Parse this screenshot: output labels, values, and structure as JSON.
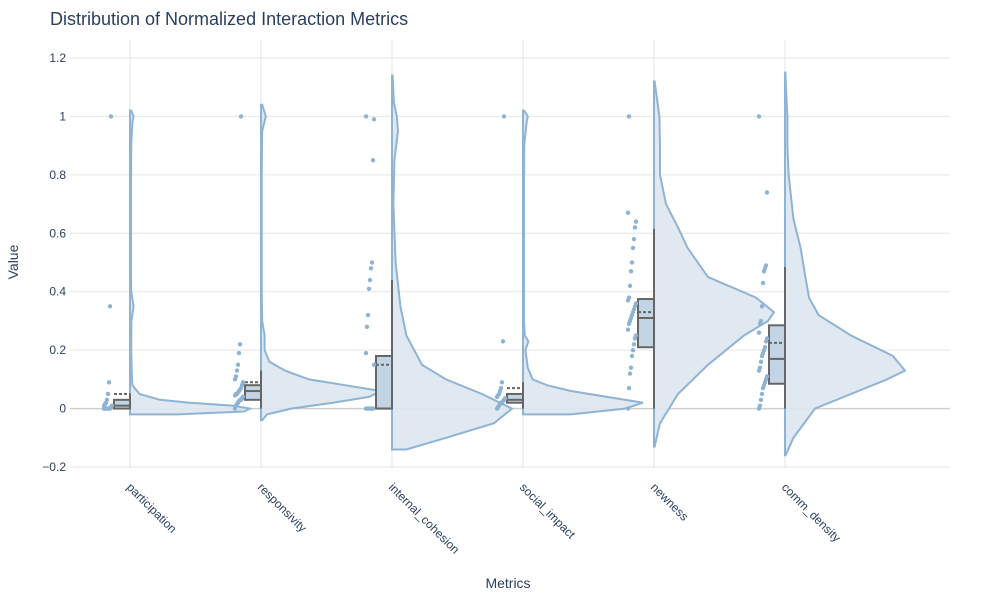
{
  "chart_data": {
    "type": "violin",
    "title": "Distribution of Normalized Interaction Metrics",
    "xlabel": "Metrics",
    "ylabel": "Value",
    "ylim": [
      -0.2,
      1.2
    ],
    "yticks": [
      -0.2,
      0,
      0.2,
      0.4,
      0.6,
      0.8,
      1,
      1.2
    ],
    "ytick_labels": [
      "−0.2",
      "0",
      "0.2",
      "0.4",
      "0.6",
      "0.8",
      "1",
      "1.2"
    ],
    "grid": true,
    "legend": "none",
    "colors": {
      "violin_line": "#8fb3d3",
      "violin_fill": "#dde7f0",
      "points": "#8fb3d3",
      "box_line": "#666666",
      "box_fill": "#c3d5e5",
      "grid": "#e5e5e5",
      "zeroline": "#d0d0d0",
      "text": "#2a3f5f"
    },
    "categories": [
      "participation",
      "responsivity",
      "internal_cohesion",
      "social_impact",
      "newness",
      "comm_density"
    ],
    "metrics": [
      {
        "name": "participation",
        "box": {
          "min": 0,
          "q1": 0.0,
          "median": 0.01,
          "q3": 0.03,
          "upper_fence": 0.05,
          "mean": 0.05
        },
        "density": [
          [
            -0.02,
            0.4
          ],
          [
            -0.01,
            0.95
          ],
          [
            0,
            1
          ],
          [
            0.01,
            0.85
          ],
          [
            0.02,
            0.5
          ],
          [
            0.03,
            0.25
          ],
          [
            0.05,
            0.08
          ],
          [
            0.08,
            0.02
          ],
          [
            0.12,
            0.015
          ],
          [
            0.2,
            0.01
          ],
          [
            0.3,
            0.012
          ],
          [
            0.35,
            0.03
          ],
          [
            0.4,
            0.01
          ],
          [
            0.5,
            0.008
          ],
          [
            0.7,
            0.008
          ],
          [
            0.9,
            0.01
          ],
          [
            0.98,
            0.02
          ],
          [
            1.0,
            0.03
          ],
          [
            1.02,
            0.01
          ]
        ],
        "points": [
          0,
          0,
          0,
          0,
          0,
          0,
          0,
          0.005,
          0.01,
          0.01,
          0.015,
          0.02,
          0.03,
          0.05,
          0.09,
          0.35,
          1.0
        ]
      },
      {
        "name": "responsivity",
        "box": {
          "min": 0,
          "q1": 0.03,
          "median": 0.06,
          "q3": 0.08,
          "upper_fence": 0.13,
          "mean": 0.09
        },
        "density": [
          [
            -0.04,
            0.01
          ],
          [
            -0.02,
            0.05
          ],
          [
            0,
            0.25
          ],
          [
            0.02,
            0.6
          ],
          [
            0.04,
            0.9
          ],
          [
            0.06,
            1
          ],
          [
            0.08,
            0.7
          ],
          [
            0.1,
            0.4
          ],
          [
            0.13,
            0.2
          ],
          [
            0.16,
            0.07
          ],
          [
            0.2,
            0.03
          ],
          [
            0.25,
            0.03
          ],
          [
            0.3,
            0.01
          ],
          [
            0.4,
            0.006
          ],
          [
            0.6,
            0.006
          ],
          [
            0.8,
            0.006
          ],
          [
            0.95,
            0.01
          ],
          [
            1.0,
            0.04
          ],
          [
            1.04,
            0.01
          ]
        ],
        "points": [
          0,
          0.01,
          0.015,
          0.02,
          0.025,
          0.03,
          0.03,
          0.035,
          0.04,
          0.045,
          0.05,
          0.05,
          0.055,
          0.06,
          0.065,
          0.07,
          0.08,
          0.09,
          0.1,
          0.11,
          0.13,
          0.15,
          0.19,
          0.22,
          1.0
        ]
      },
      {
        "name": "internal_cohesion",
        "box": {
          "min": 0,
          "q1": 0,
          "median": 0,
          "q3": 0.18,
          "upper_fence": 0.44,
          "mean": 0.15
        },
        "density": [
          [
            -0.14,
            0.12
          ],
          [
            -0.1,
            0.45
          ],
          [
            -0.05,
            0.85
          ],
          [
            0,
            1
          ],
          [
            0.05,
            0.75
          ],
          [
            0.1,
            0.45
          ],
          [
            0.15,
            0.25
          ],
          [
            0.25,
            0.12
          ],
          [
            0.35,
            0.07
          ],
          [
            0.5,
            0.03
          ],
          [
            0.7,
            0.012
          ],
          [
            0.85,
            0.02
          ],
          [
            0.95,
            0.05
          ],
          [
            1.0,
            0.04
          ],
          [
            1.05,
            0.015
          ],
          [
            1.14,
            0.005
          ]
        ],
        "points": [
          0,
          0,
          0,
          0,
          0,
          0,
          0,
          0,
          0.15,
          0.19,
          0.28,
          0.32,
          0.41,
          0.44,
          0.48,
          0.5,
          0.85,
          0.99,
          1.0
        ]
      },
      {
        "name": "social_impact",
        "box": {
          "min": 0,
          "q1": 0.02,
          "median": 0.03,
          "q3": 0.05,
          "upper_fence": 0.09,
          "mean": 0.07
        },
        "density": [
          [
            -0.02,
            0.4
          ],
          [
            0,
            0.85
          ],
          [
            0.02,
            1
          ],
          [
            0.04,
            0.7
          ],
          [
            0.06,
            0.4
          ],
          [
            0.08,
            0.2
          ],
          [
            0.1,
            0.08
          ],
          [
            0.14,
            0.04
          ],
          [
            0.2,
            0.02
          ],
          [
            0.23,
            0.045
          ],
          [
            0.25,
            0.015
          ],
          [
            0.3,
            0.008
          ],
          [
            0.5,
            0.008
          ],
          [
            0.7,
            0.008
          ],
          [
            0.9,
            0.01
          ],
          [
            0.98,
            0.03
          ],
          [
            1.0,
            0.04
          ],
          [
            1.02,
            0.01
          ]
        ],
        "points": [
          0,
          0.005,
          0.01,
          0.015,
          0.02,
          0.02,
          0.025,
          0.03,
          0.035,
          0.04,
          0.045,
          0.05,
          0.06,
          0.07,
          0.09,
          0.23,
          1.0
        ]
      },
      {
        "name": "newness",
        "box": {
          "min": 0,
          "q1": 0.21,
          "median": 0.31,
          "q3": 0.375,
          "upper_fence": 0.615,
          "mean": 0.33
        },
        "density": [
          [
            -0.13,
            0.005
          ],
          [
            -0.05,
            0.05
          ],
          [
            0.05,
            0.2
          ],
          [
            0.15,
            0.45
          ],
          [
            0.25,
            0.75
          ],
          [
            0.3,
            0.95
          ],
          [
            0.33,
            1
          ],
          [
            0.38,
            0.85
          ],
          [
            0.45,
            0.45
          ],
          [
            0.55,
            0.28
          ],
          [
            0.62,
            0.2
          ],
          [
            0.7,
            0.1
          ],
          [
            0.8,
            0.05
          ],
          [
            0.9,
            0.05
          ],
          [
            1.0,
            0.045
          ],
          [
            1.12,
            0.005
          ]
        ],
        "points": [
          0,
          0.07,
          0.12,
          0.14,
          0.18,
          0.2,
          0.22,
          0.24,
          0.25,
          0.27,
          0.29,
          0.3,
          0.31,
          0.32,
          0.33,
          0.34,
          0.35,
          0.36,
          0.37,
          0.38,
          0.42,
          0.47,
          0.5,
          0.55,
          0.58,
          0.62,
          0.64,
          0.67,
          1.0
        ]
      },
      {
        "name": "comm_density",
        "box": {
          "min": 0,
          "q1": 0.085,
          "median": 0.17,
          "q3": 0.285,
          "upper_fence": 0.485,
          "mean": 0.225
        },
        "density": [
          [
            -0.16,
            0.005
          ],
          [
            -0.1,
            0.07
          ],
          [
            0,
            0.25
          ],
          [
            0.05,
            0.55
          ],
          [
            0.1,
            0.85
          ],
          [
            0.13,
            1
          ],
          [
            0.18,
            0.9
          ],
          [
            0.25,
            0.55
          ],
          [
            0.32,
            0.28
          ],
          [
            0.38,
            0.2
          ],
          [
            0.45,
            0.17
          ],
          [
            0.55,
            0.13
          ],
          [
            0.65,
            0.07
          ],
          [
            0.8,
            0.03
          ],
          [
            0.9,
            0.02
          ],
          [
            1.0,
            0.02
          ],
          [
            1.08,
            0.01
          ],
          [
            1.15,
            0.003
          ]
        ],
        "points": [
          0,
          0.01,
          0.03,
          0.05,
          0.07,
          0.08,
          0.09,
          0.1,
          0.11,
          0.13,
          0.14,
          0.16,
          0.18,
          0.19,
          0.2,
          0.21,
          0.23,
          0.24,
          0.26,
          0.29,
          0.3,
          0.35,
          0.43,
          0.47,
          0.48,
          0.49,
          0.74,
          1.0
        ]
      }
    ]
  }
}
